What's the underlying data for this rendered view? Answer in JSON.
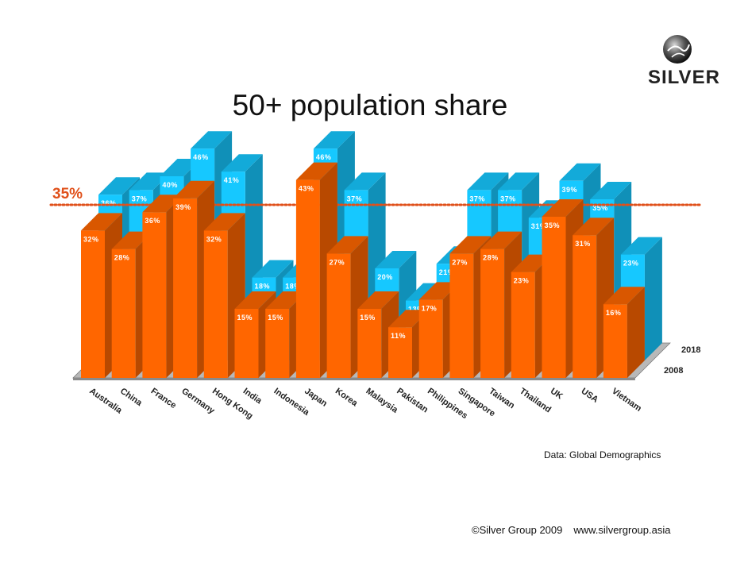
{
  "brand": {
    "name": "SILVER",
    "icon": "silver-globe-logo-icon"
  },
  "slide": {
    "title": "50+ population share",
    "source": "Data: Global Demographics",
    "copyright": "©Silver Group 2009",
    "website": "www.silvergroup.asia"
  },
  "colors": {
    "series_2008": "#ff6600",
    "series_2018": "#16c8ff",
    "reference": "#e0501a"
  },
  "chart_data": {
    "type": "bar",
    "subtype": "3d-clustered-depth",
    "title": "50+ population share",
    "categories": [
      "Australia",
      "China",
      "France",
      "Germany",
      "Hong Kong",
      "India",
      "Indonesia",
      "Japan",
      "Korea",
      "Malaysia",
      "Pakistan",
      "Philippines",
      "Singapore",
      "Taiwan",
      "Thailand",
      "UK",
      "USA",
      "Vietnam"
    ],
    "series": [
      {
        "name": "2008",
        "values": [
          32,
          28,
          36,
          39,
          32,
          15,
          15,
          43,
          27,
          15,
          11,
          17,
          27,
          28,
          23,
          35,
          31,
          16
        ],
        "labels": [
          "32%",
          "28%",
          "36%",
          "39%",
          "32%",
          "15%",
          "15%",
          "43%",
          "27%",
          "15%",
          "11%",
          "17%",
          "27%",
          "28%",
          "23%",
          "35%",
          "31%",
          "16%"
        ]
      },
      {
        "name": "2018",
        "values": [
          36,
          37,
          40,
          46,
          41,
          18,
          18,
          46,
          37,
          20,
          13,
          21,
          37,
          37,
          31,
          39,
          35,
          23
        ],
        "labels": [
          "36%",
          "37%",
          "40%",
          "46%",
          "41%",
          "18%",
          "18%",
          "46%",
          "37%",
          "20%",
          "13%",
          "21%",
          "37%",
          "37%",
          "31%",
          "39%",
          "35%",
          "23%"
        ]
      }
    ],
    "reference_line": {
      "value": 35,
      "label": "35%",
      "style": "dotted"
    },
    "ylim": [
      0,
      50
    ],
    "xlabel": "",
    "ylabel": "",
    "legend": "series names at right end of depth rows"
  }
}
